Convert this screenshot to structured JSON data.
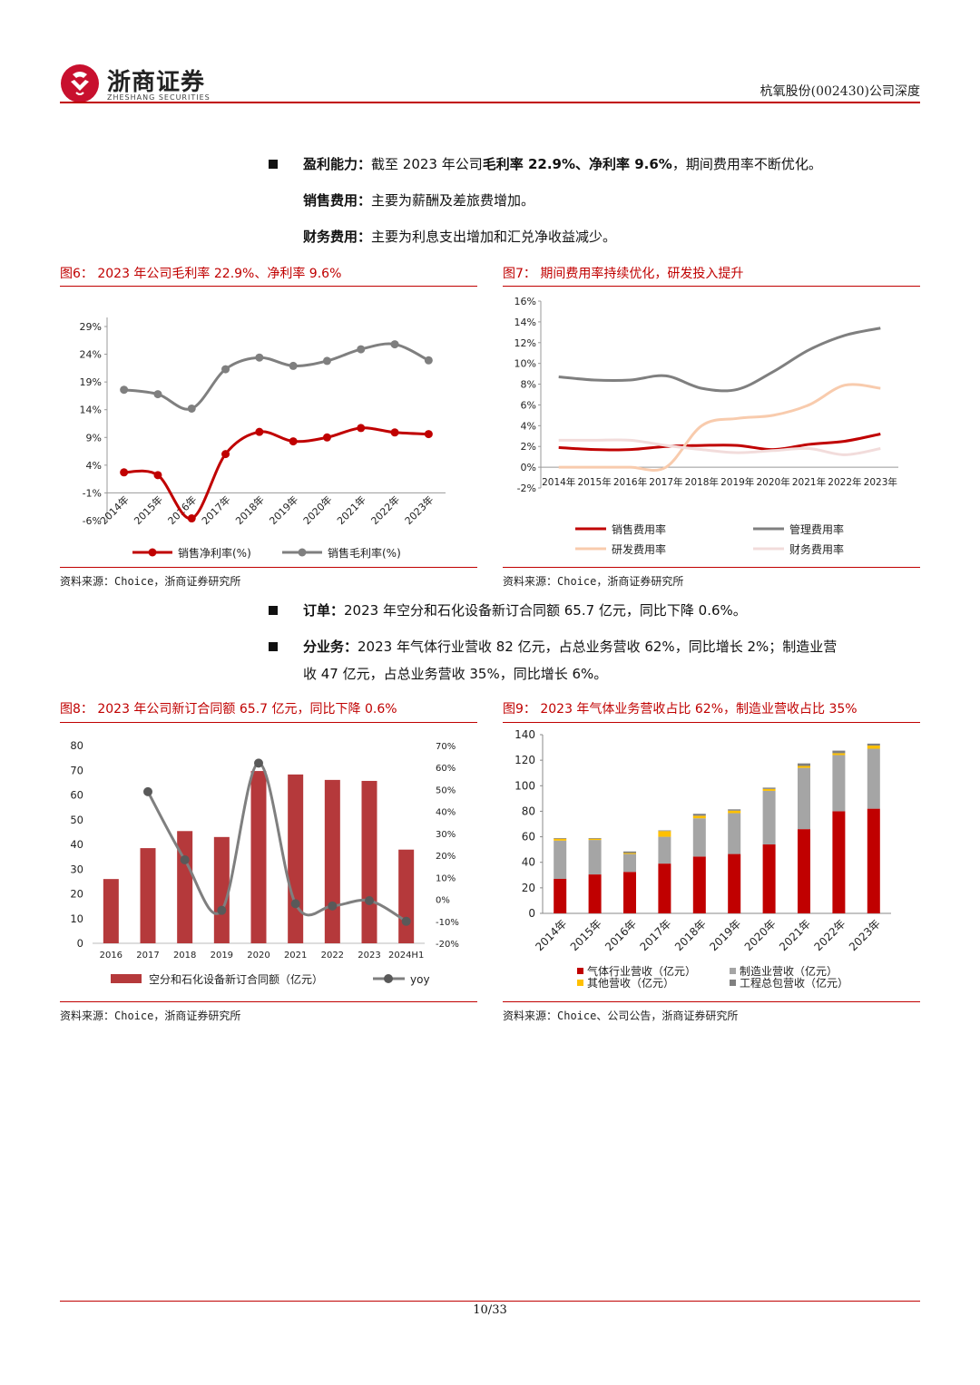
{
  "header": {
    "brand_cn": "浙商证券",
    "brand_en": "ZHESHANG SECURITIES",
    "report": "杭氧股份(002430)公司深度"
  },
  "paragraphs": {
    "p1_label": "盈利能力：",
    "p1_text_a": "截至 2023 年公司",
    "p1_bold_a": "毛利率 22.9%、净利率 9.6%",
    "p1_text_b": "，期间费用率不断优化。",
    "p2_label": "销售费用：",
    "p2_text": "主要为薪酬及差旅费增加。",
    "p3_label": "财务费用：",
    "p3_text": "主要为利息支出增加和汇兑净收益减少。",
    "p4_label": "订单：",
    "p4_text": "2023 年空分和石化设备新订合同额 65.7 亿元，同比下降 0.6%。",
    "p5_label": "分业务：",
    "p5_text_a": "2023 年气体行业营收 82 亿元，占总业务营收 62%，同比增长 2%；制造业营",
    "p5_text_b": "收 47 亿元，占总业务营收 35%，同比增长 6%。"
  },
  "figures": {
    "fig6_title": "图6：  2023 年公司毛利率 22.9%、净利率 9.6%",
    "fig7_title": "图7：  期间费用率持续优化，研发投入提升",
    "fig8_title": "图8：  2023 年公司新订合同额 65.7 亿元，同比下降 0.6%",
    "fig9_title": "图9：  2023 年气体业务营收占比 62%，制造业营收占比 35%",
    "src6": "资料来源：Choice，浙商证券研究所",
    "src7": "资料来源：Choice，浙商证券研究所",
    "src8": "资料来源：Choice，浙商证券研究所",
    "src9": "资料来源：Choice、公司公告，浙商证券研究所"
  },
  "footer": {
    "page": "10/33"
  },
  "chart_data": [
    {
      "id": "fig6",
      "type": "line",
      "categories": [
        "2014年",
        "2015年",
        "2016年",
        "2017年",
        "2018年",
        "2019年",
        "2020年",
        "2021年",
        "2022年",
        "2023年"
      ],
      "yticks": [
        "29%",
        "24%",
        "19%",
        "14%",
        "9%",
        "4%",
        "-1%",
        "-6%"
      ],
      "ylim": [
        -6,
        29
      ],
      "series": [
        {
          "name": "销售净利率(%)",
          "color": "#c00000",
          "values": [
            2.7,
            2.2,
            -5.6,
            6.0,
            10.0,
            8.3,
            9.0,
            10.7,
            9.9,
            9.6
          ]
        },
        {
          "name": "销售毛利率(%)",
          "color": "#7f7f7f",
          "values": [
            17.6,
            16.8,
            14.2,
            21.3,
            23.4,
            21.9,
            22.8,
            24.9,
            25.8,
            22.9
          ]
        }
      ]
    },
    {
      "id": "fig7",
      "type": "line",
      "categories": [
        "2014年",
        "2015年",
        "2016年",
        "2017年",
        "2018年",
        "2019年",
        "2020年",
        "2021年",
        "2022年",
        "2023年"
      ],
      "yticks": [
        "16%",
        "14%",
        "12%",
        "10%",
        "8%",
        "6%",
        "4%",
        "2%",
        "0%",
        "-2%"
      ],
      "ylim": [
        -2,
        16
      ],
      "series": [
        {
          "name": "销售费用率",
          "color": "#c00000",
          "values": [
            1.9,
            1.7,
            1.7,
            2.0,
            2.1,
            2.1,
            1.7,
            2.2,
            2.5,
            3.2
          ]
        },
        {
          "name": "管理费用率",
          "color": "#7f7f7f",
          "values": [
            8.7,
            8.4,
            8.4,
            8.8,
            7.6,
            7.5,
            9.2,
            11.3,
            12.7,
            13.4
          ]
        },
        {
          "name": "研发费用率",
          "color": "#f8cbad",
          "values": [
            0.0,
            0.0,
            0.0,
            0.0,
            4.0,
            4.7,
            5.0,
            6.0,
            7.9,
            7.6
          ]
        },
        {
          "name": "财务费用率",
          "color": "#f2dcdb",
          "values": [
            2.6,
            2.6,
            2.6,
            2.1,
            1.7,
            1.4,
            1.6,
            1.8,
            1.2,
            1.8
          ]
        }
      ]
    },
    {
      "id": "fig8",
      "type": "bar",
      "categories": [
        "2016",
        "2017",
        "2018",
        "2019",
        "2020",
        "2021",
        "2022",
        "2023",
        "2024H1"
      ],
      "yticks_left": [
        "80",
        "70",
        "60",
        "50",
        "40",
        "30",
        "20",
        "10",
        "0"
      ],
      "yticks_right": [
        "70%",
        "60%",
        "50%",
        "40%",
        "30%",
        "20%",
        "10%",
        "0%",
        "-10%",
        "-20%"
      ],
      "ylim_left": [
        0,
        80
      ],
      "ylim_right": [
        -20,
        70
      ],
      "series": [
        {
          "name": "空分和石化设备新订合同额（亿元）",
          "color": "#b5393b",
          "values": [
            26.0,
            38.5,
            45.4,
            43.0,
            69.7,
            68.3,
            66.1,
            65.7,
            37.9
          ]
        },
        {
          "name": "yoy",
          "color": "#7f7f7f",
          "values": [
            null,
            49.0,
            18.0,
            -5.0,
            62.0,
            -2.0,
            -3.0,
            -0.6,
            -10.0
          ]
        }
      ]
    },
    {
      "id": "fig9",
      "type": "bar",
      "stacked": true,
      "categories": [
        "2014年",
        "2015年",
        "2016年",
        "2017年",
        "2018年",
        "2019年",
        "2020年",
        "2021年",
        "2022年",
        "2023年"
      ],
      "yticks": [
        "140",
        "120",
        "100",
        "80",
        "60",
        "40",
        "20",
        "0"
      ],
      "ylim": [
        0,
        140
      ],
      "series": [
        {
          "name": "气体行业营收（亿元）",
          "color": "#c00000",
          "values": [
            27,
            30.5,
            32.5,
            39,
            44.5,
            46.5,
            54,
            66,
            80,
            82
          ]
        },
        {
          "name": "制造业营收（亿元）",
          "color": "#a5a5a5",
          "values": [
            30,
            27,
            14,
            21,
            30,
            32,
            42,
            48,
            44,
            47
          ]
        },
        {
          "name": "其他营收（亿元）",
          "color": "#ffc000",
          "values": [
            1.5,
            1.0,
            0.8,
            4.5,
            2.0,
            2.0,
            1.5,
            1.5,
            1.5,
            2.5
          ]
        },
        {
          "name": "工程总包营收（亿元）",
          "color": "#7f7f7f",
          "values": [
            0.5,
            0.5,
            1.2,
            0.5,
            1.5,
            1.0,
            1.0,
            2.0,
            2.0,
            1.5
          ]
        }
      ]
    }
  ]
}
